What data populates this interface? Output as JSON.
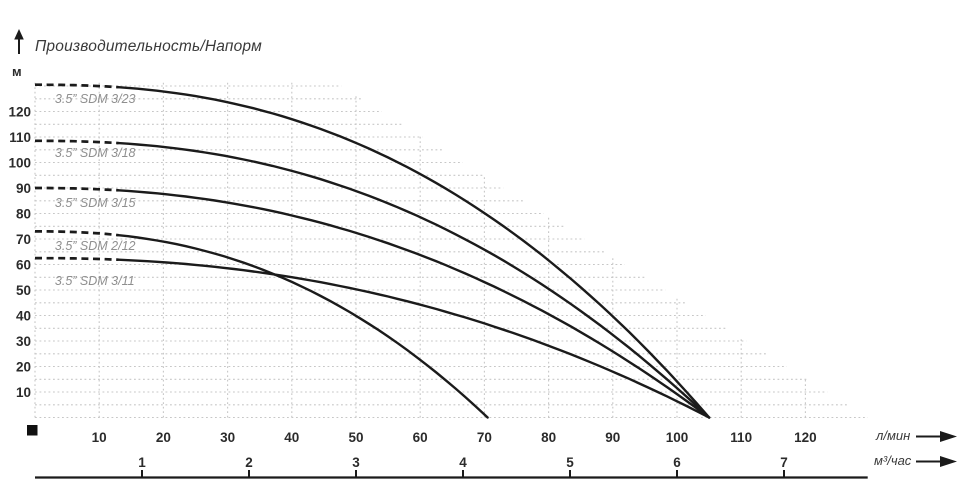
{
  "header": {
    "title": "Производительность/Напорм",
    "y_axis_unit": "м"
  },
  "axes": {
    "x_primary": {
      "unit": "л/мин",
      "ticks": [
        10,
        20,
        30,
        40,
        50,
        60,
        70,
        80,
        90,
        100,
        110,
        120
      ]
    },
    "x_secondary": {
      "unit": "м³/час",
      "ticks": [
        1,
        2,
        3,
        4,
        5,
        6,
        7
      ],
      "lmin_per_unit": 16.667
    },
    "y": {
      "unit": "м",
      "ticks": [
        10,
        20,
        30,
        40,
        50,
        60,
        70,
        80,
        90,
        100,
        110,
        120
      ]
    }
  },
  "chart_data": {
    "type": "line",
    "title": "Производительность/Напорм",
    "xlabel": "л/мин",
    "xlabel_secondary": "м³/час",
    "ylabel": "м",
    "x_range_lmin": [
      0,
      130
    ],
    "y_range_m": [
      0,
      133
    ],
    "legend_position": "labels-on-curves",
    "grid": {
      "style": "dotted",
      "h_step_m": 5,
      "q_step_lmin": 10,
      "h_max": 130,
      "q_max": 120,
      "q_end_at_h0": 129.7,
      "q_end_at_hmax": 47.7,
      "v_cap_h": 132
    },
    "points_q_lmin_default": [
      0,
      10,
      20,
      30,
      40,
      50,
      60,
      70,
      80,
      90,
      100,
      105
    ],
    "series": [
      {
        "name": "3.5” SDM 3/23",
        "shutoff_head_m": 130.5,
        "max_flow_lmin": 105,
        "exp": 2.35,
        "dash_until_q": 13,
        "label_q": 3.1,
        "label_h": 123.3,
        "points_h_m": [
          130.5,
          130.2,
          127.8,
          123.6,
          117.0,
          107.7,
          95.5,
          80.2,
          61.6,
          39.6,
          14.1,
          0
        ]
      },
      {
        "name": "3.5” SDM 3/18",
        "shutoff_head_m": 108.5,
        "max_flow_lmin": 105,
        "exp": 2.3,
        "dash_until_q": 13,
        "label_q": 3.1,
        "label_h": 102.2,
        "points_h_m": [
          108.5,
          108.0,
          106.1,
          102.4,
          96.7,
          88.8,
          78.5,
          65.8,
          50.5,
          32.4,
          11.5,
          0
        ]
      },
      {
        "name": "3.5” SDM 3/15",
        "shutoff_head_m": 90,
        "max_flow_lmin": 105,
        "exp": 2.2,
        "dash_until_q": 13,
        "label_q": 3.1,
        "label_h": 82.5,
        "points_h_m": [
          90,
          89.5,
          87.7,
          84.3,
          79.2,
          72.4,
          63.7,
          53.1,
          40.5,
          25.9,
          9.2,
          0
        ]
      },
      {
        "name": "3.5” SDM 2/12",
        "shutoff_head_m": 73,
        "max_flow_lmin": 70.5,
        "exp": 2.3,
        "dash_until_q": 13,
        "label_q": 3.1,
        "label_h": 65.7,
        "points_q_lmin": [
          0,
          10,
          20,
          30,
          40,
          50,
          60,
          70,
          70.5
        ],
        "points_h_m": [
          73,
          72.2,
          69.0,
          62.8,
          53.2,
          39.9,
          22.6,
          1.2,
          0
        ]
      },
      {
        "name": "3.5” SDM 3/11",
        "shutoff_head_m": 62.5,
        "max_flow_lmin": 105,
        "exp": 2.2,
        "dash_until_q": 13,
        "label_q": 3.1,
        "label_h": 52.0,
        "points_h_m": [
          62.5,
          62.1,
          60.9,
          58.5,
          55.0,
          50.3,
          44.3,
          36.9,
          28.1,
          18.0,
          6.4,
          0
        ]
      }
    ],
    "origin_marker": "black-square"
  },
  "colors": {
    "curve": "#1b1b1b",
    "grid_dots": "#c7c7c7",
    "tick_text": "#2b2b2b",
    "series_label": "#8f8f8f",
    "title_text": "#3a3a3a",
    "axis_line": "#1b1b1b",
    "background": "#ffffff"
  }
}
